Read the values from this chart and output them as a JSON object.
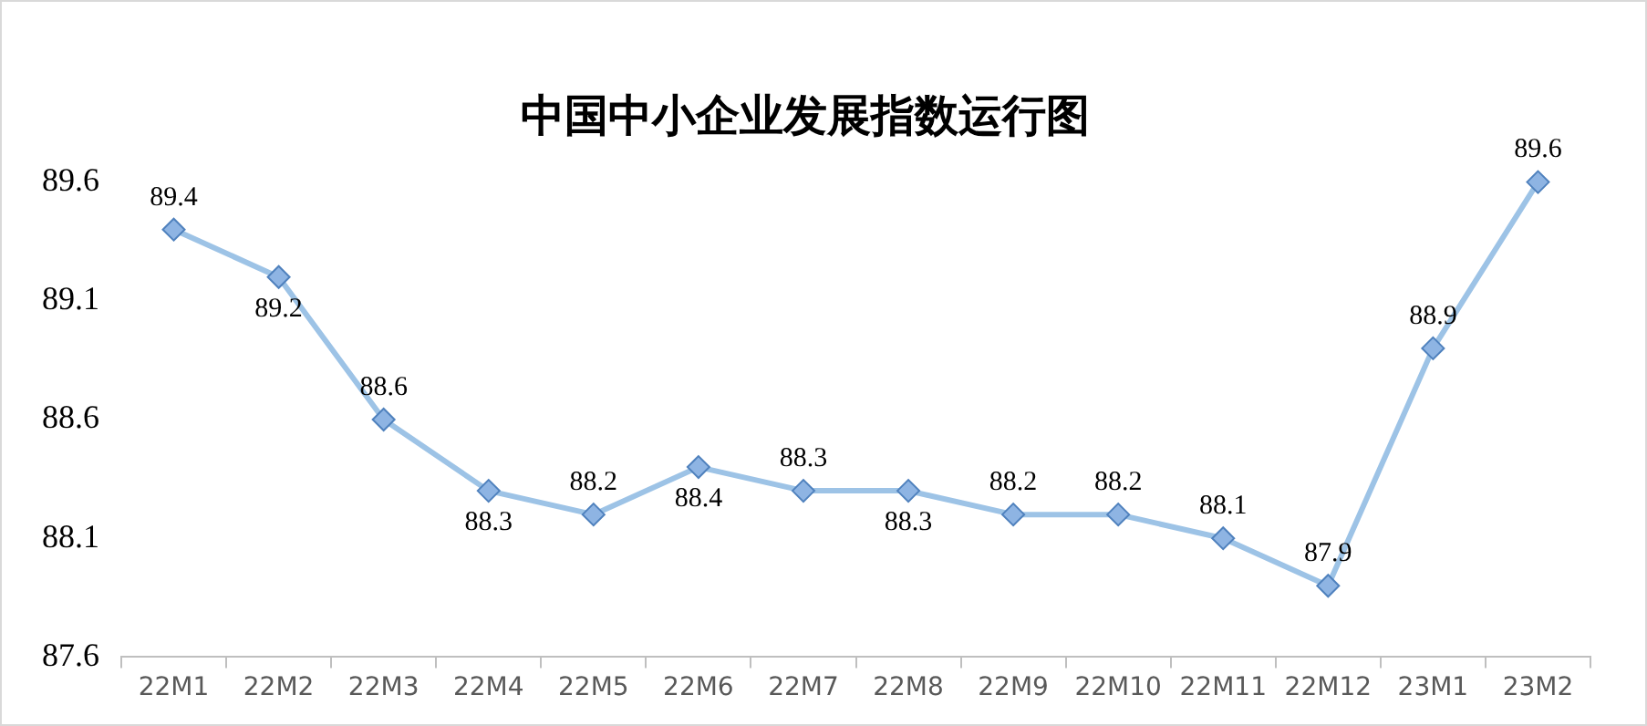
{
  "chart_data": {
    "type": "line",
    "title": "中国中小企业发展指数运行图",
    "categories": [
      "22M1",
      "22M2",
      "22M3",
      "22M4",
      "22M5",
      "22M6",
      "22M7",
      "22M8",
      "22M9",
      "22M10",
      "22M11",
      "22M12",
      "23M1",
      "23M2"
    ],
    "series": [
      {
        "color": "#9dc3e6",
        "values": [
          89.4,
          89.2,
          88.6,
          88.3,
          88.2,
          88.4,
          88.3,
          88.3,
          88.2,
          88.2,
          88.1,
          87.9,
          88.9,
          89.6
        ]
      }
    ],
    "ylim": [
      87.6,
      89.6
    ],
    "yticks": [
      87.6,
      88.1,
      88.6,
      89.1,
      89.6
    ],
    "grid": false,
    "legend": false,
    "marker": "diamond",
    "line_style": "solid",
    "data_labels": true
  }
}
